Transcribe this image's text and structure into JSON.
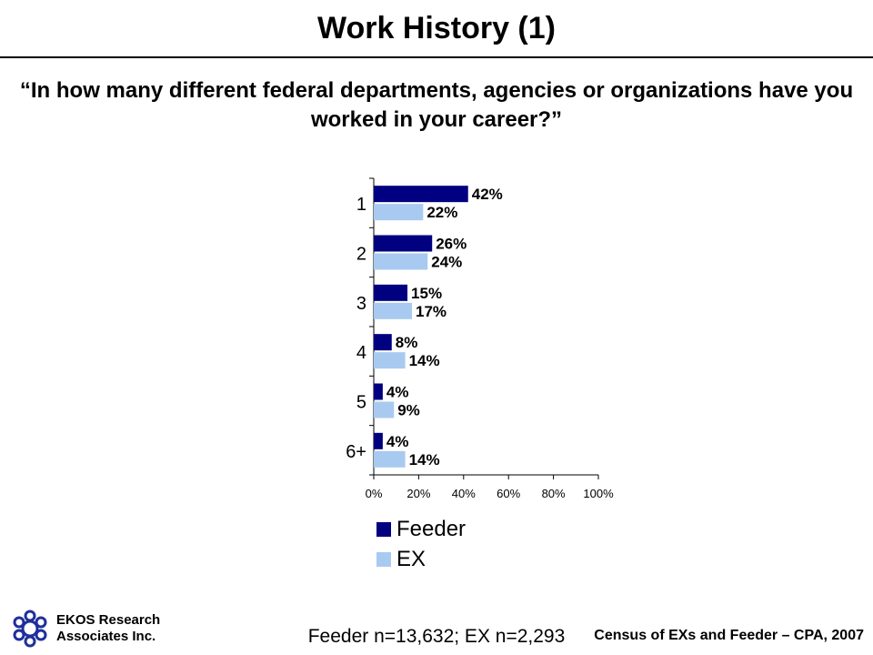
{
  "title": "Work History (1)",
  "question": "“In how many different federal departments, agencies or organizations have you worked in your career?”",
  "chart_data": {
    "type": "bar",
    "orientation": "horizontal",
    "categories": [
      "1",
      "2",
      "3",
      "4",
      "5",
      "6+"
    ],
    "series": [
      {
        "name": "Feeder",
        "values": [
          42,
          26,
          15,
          8,
          4,
          4
        ],
        "labels": [
          "42%",
          "26%",
          "15%",
          "8%",
          "4%",
          "4%"
        ],
        "color": "#000080"
      },
      {
        "name": "EX",
        "values": [
          22,
          24,
          17,
          14,
          9,
          14
        ],
        "labels": [
          "22%",
          "24%",
          "17%",
          "14%",
          "9%",
          "14%"
        ],
        "color": "#A9CAF0"
      }
    ],
    "xlim": [
      0,
      100
    ],
    "xticks": [
      "0%",
      "20%",
      "40%",
      "60%",
      "80%",
      "100%"
    ],
    "grid": false,
    "legend": "bottom"
  },
  "footer": {
    "company_line1": "EKOS Research",
    "company_line2": "Associates Inc.",
    "sample": "Feeder n=13,632; EX n=2,293",
    "source": "Census of EXs and Feeder – CPA, 2007"
  }
}
